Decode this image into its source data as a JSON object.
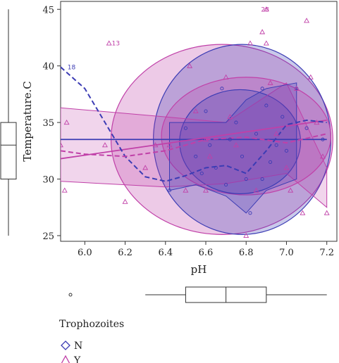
{
  "chart_data": {
    "type": "scatter",
    "title": "",
    "xlabel": "pH",
    "ylabel": "Temperature.C",
    "xlim": [
      5.88,
      7.25
    ],
    "ylim": [
      24.5,
      45.7
    ],
    "x_ticks": [
      "6.0",
      "6.2",
      "6.4",
      "6.6",
      "6.8",
      "7.0",
      "7.2"
    ],
    "y_ticks": [
      "25",
      "30",
      "35",
      "40",
      "45"
    ],
    "legend": {
      "title": "Trophozoites",
      "position": "bottom-left",
      "items": [
        {
          "label": "N",
          "shape": "diamond",
          "color": "#3c3cb4"
        },
        {
          "label": "Y",
          "shape": "triangle",
          "color": "#c040a8"
        }
      ]
    },
    "series": [
      {
        "name": "N",
        "marker": "circle",
        "color": "#3c3cb4",
        "points": [
          [
            6.42,
            29.0
          ],
          [
            6.5,
            34.5
          ],
          [
            6.55,
            32.0
          ],
          [
            6.58,
            30.5
          ],
          [
            6.6,
            36.0
          ],
          [
            6.62,
            33.0
          ],
          [
            6.65,
            31.0
          ],
          [
            6.68,
            38.0
          ],
          [
            6.7,
            29.5
          ],
          [
            6.72,
            33.5
          ],
          [
            6.75,
            35.0
          ],
          [
            6.78,
            32.0
          ],
          [
            6.8,
            30.0
          ],
          [
            6.82,
            27.0
          ],
          [
            6.85,
            34.0
          ],
          [
            6.88,
            38.0
          ],
          [
            6.9,
            36.5
          ],
          [
            6.92,
            31.5
          ],
          [
            6.95,
            33.0
          ],
          [
            6.98,
            35.5
          ],
          [
            7.0,
            32.5
          ],
          [
            7.05,
            38.0
          ],
          [
            7.1,
            34.5
          ],
          [
            7.18,
            33.5
          ],
          [
            6.88,
            30.0
          ]
        ]
      },
      {
        "name": "Y",
        "marker": "triangle",
        "color": "#c040a8",
        "points": [
          [
            5.88,
            33.0
          ],
          [
            5.9,
            29.0
          ],
          [
            5.91,
            35.0
          ],
          [
            6.1,
            33.0
          ],
          [
            6.2,
            28.0
          ],
          [
            6.3,
            31.0
          ],
          [
            6.35,
            33.0
          ],
          [
            6.42,
            33.0
          ],
          [
            6.5,
            29.0
          ],
          [
            6.52,
            40.0
          ],
          [
            6.55,
            36.0
          ],
          [
            6.6,
            29.0
          ],
          [
            6.62,
            32.0
          ],
          [
            6.7,
            39.0
          ],
          [
            6.72,
            35.5
          ],
          [
            6.75,
            33.0
          ],
          [
            6.8,
            25.0
          ],
          [
            6.82,
            42.0
          ],
          [
            6.88,
            43.0
          ],
          [
            6.9,
            42.0
          ],
          [
            6.9,
            45.0
          ],
          [
            6.92,
            38.5
          ],
          [
            6.95,
            34.0
          ],
          [
            7.0,
            31.0
          ],
          [
            7.02,
            29.0
          ],
          [
            7.05,
            38.0
          ],
          [
            7.08,
            27.0
          ],
          [
            7.1,
            44.0
          ],
          [
            7.12,
            39.0
          ],
          [
            7.15,
            35.0
          ],
          [
            7.18,
            32.0
          ],
          [
            7.2,
            27.0
          ],
          [
            6.12,
            42.0
          ],
          [
            6.85,
            29.0
          ],
          [
            6.6,
            33.5
          ]
        ]
      }
    ],
    "point_labels": [
      {
        "text": "18",
        "x": 5.9,
        "y": 39.9,
        "color": "#3c3cb4"
      },
      {
        "text": "13",
        "x": 6.12,
        "y": 42.0,
        "color": "#c040a8"
      },
      {
        "text": "28",
        "x": 6.86,
        "y": 45.0,
        "color": "#c040a8"
      }
    ],
    "boxplot_x": {
      "min": 6.3,
      "q1": 6.5,
      "median": 6.7,
      "q3": 6.9,
      "max": 7.2,
      "outliers": [
        5.88
      ]
    },
    "boxplot_y": {
      "min": 25,
      "q1": 30,
      "median": 33,
      "q3": 35,
      "max": 45
    },
    "fits": [
      {
        "series": "N",
        "kind": "linear",
        "style": "solid",
        "x": [
          5.88,
          7.2
        ],
        "y": [
          33.5,
          33.5
        ]
      },
      {
        "series": "Y",
        "kind": "linear",
        "style": "solid",
        "x": [
          5.88,
          7.2
        ],
        "y": [
          31.8,
          35.2
        ]
      },
      {
        "series": "N",
        "kind": "smooth",
        "style": "dashed",
        "x": [
          5.88,
          6.0,
          6.1,
          6.2,
          6.3,
          6.4,
          6.5,
          6.6,
          6.7,
          6.8,
          6.9,
          7.0,
          7.1,
          7.2
        ],
        "y": [
          39.9,
          38.0,
          35.0,
          32.0,
          30.2,
          29.8,
          30.3,
          31.0,
          31.2,
          30.5,
          32.5,
          34.8,
          35.2,
          35.0
        ]
      },
      {
        "series": "Y",
        "kind": "smooth",
        "style": "dashed",
        "x": [
          5.88,
          6.0,
          6.2,
          6.4,
          6.6,
          6.8,
          7.0,
          7.2
        ],
        "y": [
          32.5,
          32.2,
          32.0,
          32.5,
          33.5,
          33.7,
          33.2,
          34.0
        ]
      }
    ],
    "bands": [
      {
        "series": "Y",
        "x": [
          5.88,
          6.4,
          6.7,
          7.0,
          7.2
        ],
        "upper": [
          36.3,
          35.5,
          35.0,
          38.5,
          31.0
        ],
        "lower": [
          29.8,
          29.3,
          29.6,
          30.5,
          27.5
        ]
      },
      {
        "series": "N",
        "x": [
          6.42,
          6.55,
          6.7,
          6.8,
          6.9,
          7.05
        ],
        "upper": [
          35.0,
          35.0,
          35.0,
          37.0,
          38.0,
          38.5
        ],
        "lower": [
          29.0,
          29.5,
          28.5,
          27.0,
          29.0,
          30.0
        ]
      }
    ],
    "ellipses": [
      {
        "series": "Y",
        "cx": 6.68,
        "cy": 33.5,
        "rx": 0.55,
        "ry": 8.4,
        "angle": 0
      },
      {
        "series": "N",
        "cx": 6.78,
        "cy": 33.5,
        "rx": 0.44,
        "ry": 8.4,
        "angle": 0
      },
      {
        "series": "Y",
        "cx": 6.8,
        "cy": 33.8,
        "rx": 0.42,
        "ry": 5.2,
        "angle": 0
      },
      {
        "series": "N",
        "cx": 6.77,
        "cy": 33.3,
        "rx": 0.3,
        "ry": 4.6,
        "angle": 0
      }
    ],
    "grid": false
  }
}
